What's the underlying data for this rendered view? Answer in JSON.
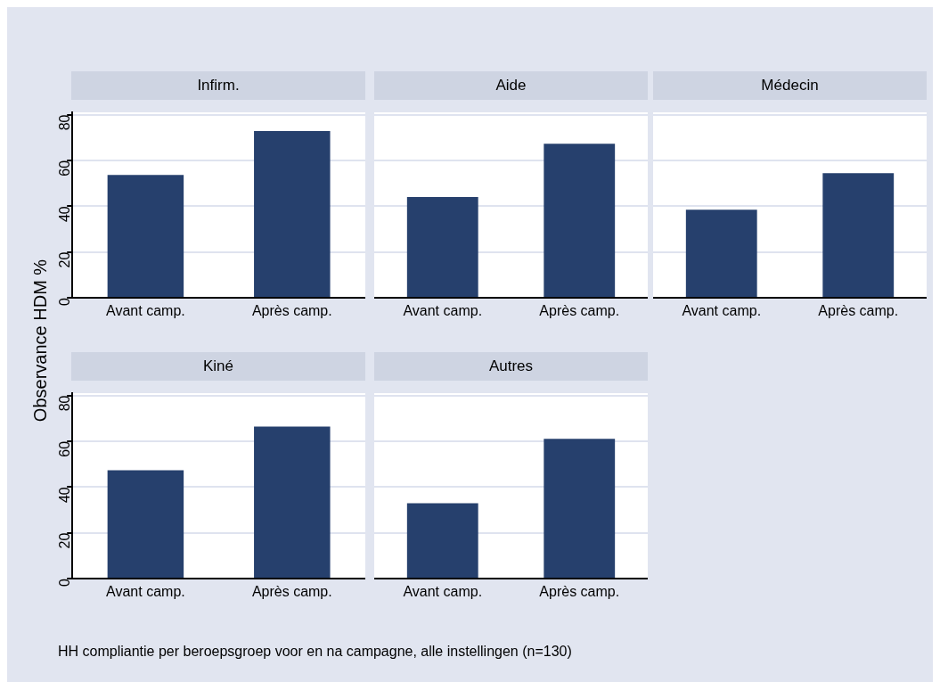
{
  "chart_data": [
    {
      "type": "bar",
      "title": "Infirm.",
      "ylabel": "Observance HDM %",
      "categories": [
        "Avant camp.",
        "Après camp."
      ],
      "values": [
        53.6,
        72.8
      ],
      "color": "#26406d",
      "ylim": [
        0,
        81
      ],
      "yticks": [
        0,
        20,
        40,
        60,
        80
      ],
      "grid": "y"
    },
    {
      "type": "bar",
      "title": "Aide",
      "categories": [
        "Avant camp.",
        "Après camp."
      ],
      "values": [
        44.0,
        67.3
      ],
      "color": "#26406d",
      "ylim": [
        0,
        81
      ],
      "yticks": [
        0,
        20,
        40,
        60,
        80
      ],
      "grid": "y",
      "tick_labels": "x"
    },
    {
      "type": "bar",
      "title": "Médecin",
      "categories": [
        "Avant camp.",
        "Après camp."
      ],
      "values": [
        38.5,
        54.4
      ],
      "color": "#26406d",
      "ylim": [
        0,
        81
      ],
      "yticks": [
        0,
        20,
        40,
        60,
        80
      ],
      "grid": "y",
      "tick_labels": "x"
    },
    {
      "type": "bar",
      "title": "Kiné",
      "categories": [
        "Avant camp.",
        "Après camp."
      ],
      "values": [
        47.3,
        66.4
      ],
      "color": "#26406d",
      "ylim": [
        0,
        81
      ],
      "yticks": [
        0,
        20,
        40,
        60,
        80
      ],
      "grid": "y",
      "annotations": [
        "HH compliantie per beroepsgroep voor en na campagne, alle instellingen (n=130)"
      ]
    },
    {
      "type": "bar",
      "title": "Autres",
      "categories": [
        "Avant camp.",
        "Après camp."
      ],
      "values": [
        32.9,
        61.0
      ],
      "color": "#26406d",
      "ylim": [
        0,
        81
      ],
      "yticks": [
        0,
        20,
        40,
        60,
        80
      ],
      "grid": "y",
      "tick_labels": "x"
    }
  ]
}
